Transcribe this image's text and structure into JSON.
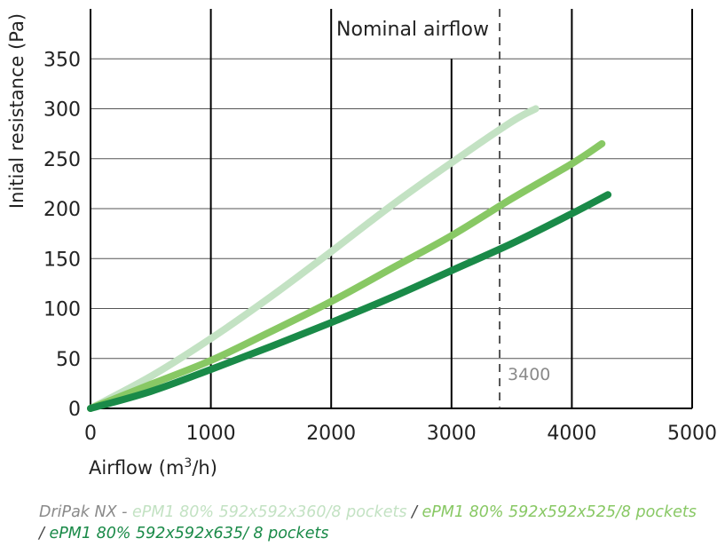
{
  "chart_data": {
    "type": "line",
    "xlabel_prefix": "Airflow (m",
    "xlabel_sup": "3",
    "xlabel_suffix": "/h)",
    "ylabel": "Initial resistance (Pa)",
    "xlim": [
      0,
      5000
    ],
    "ylim": [
      0,
      400
    ],
    "x_ticks": [
      0,
      1000,
      2000,
      3000,
      4000,
      5000
    ],
    "y_ticks": [
      0,
      50,
      100,
      150,
      200,
      250,
      300,
      350
    ],
    "grid": true,
    "nominal_line": {
      "x": 3400,
      "label": "Nominal airflow",
      "value_label": "3400"
    },
    "series": [
      {
        "color": "#c3e2c3",
        "x": [
          0,
          500,
          1000,
          1500,
          2000,
          2500,
          3000,
          3500,
          3700
        ],
        "y": [
          0,
          32,
          70,
          112,
          157,
          203,
          246,
          287,
          300
        ]
      },
      {
        "color": "#88c864",
        "x": [
          0,
          500,
          1000,
          1500,
          2000,
          2500,
          3000,
          3500,
          4000,
          4250
        ],
        "y": [
          0,
          24,
          48,
          77,
          107,
          140,
          173,
          210,
          245,
          265
        ]
      },
      {
        "color": "#1a8a48",
        "x": [
          0,
          500,
          1000,
          1500,
          2000,
          2500,
          3000,
          3500,
          4000,
          4300
        ],
        "y": [
          0,
          17,
          39,
          62,
          86,
          111,
          138,
          165,
          195,
          214
        ]
      }
    ]
  },
  "legend": {
    "prefix": "DriPak NX - ",
    "item1": "ePM1 80% 592x592x360/8 pockets",
    "sep1": " / ",
    "item2": "ePM1 80% 592x592x525/8  pockets",
    "sep2": "/ ",
    "item3": "ePM1 80% 592x592x635/ 8 pockets",
    "prefix_color": "#8a8a8a",
    "item1_color": "#c3e2c3",
    "item2_color": "#88c864",
    "item3_color": "#1a8a48"
  }
}
